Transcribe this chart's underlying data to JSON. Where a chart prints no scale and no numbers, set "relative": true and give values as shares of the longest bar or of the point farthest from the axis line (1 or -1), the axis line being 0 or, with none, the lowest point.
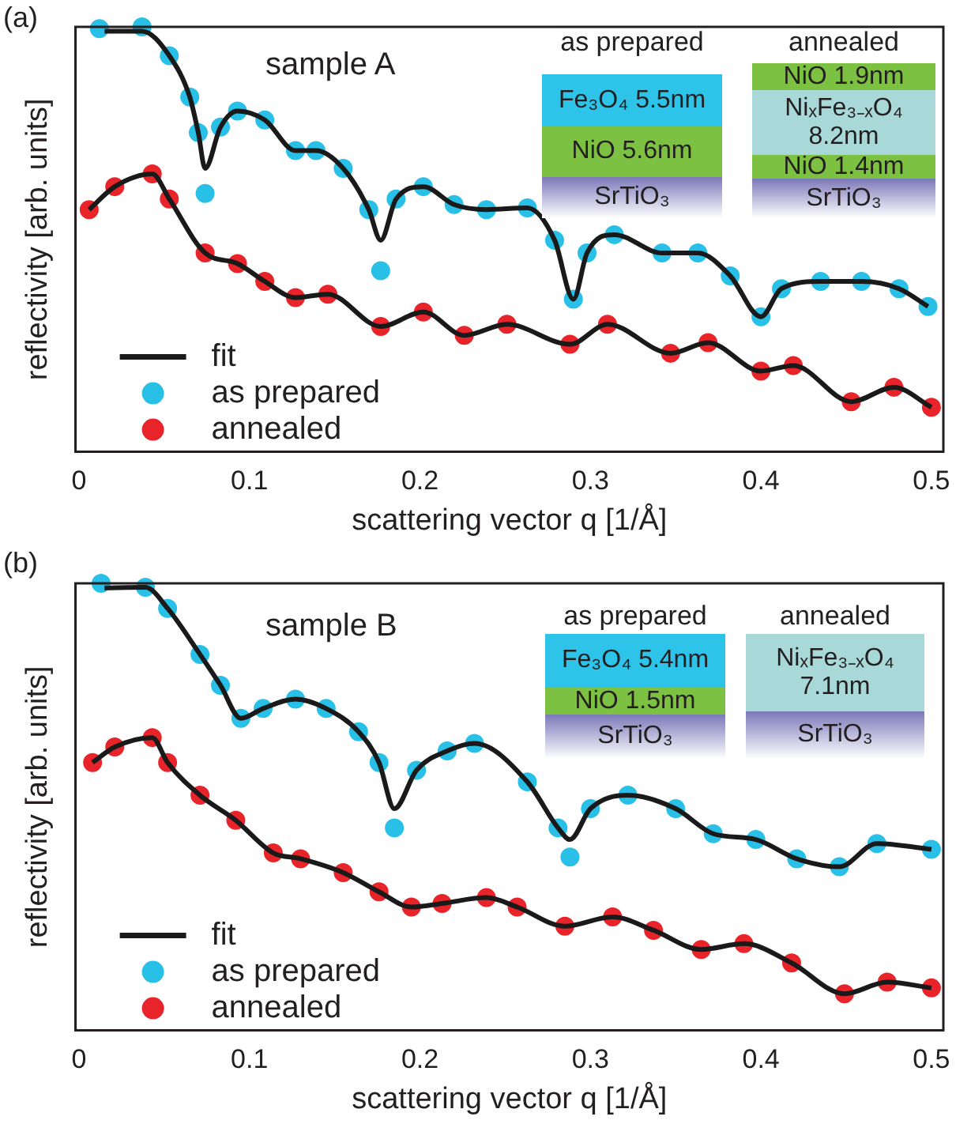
{
  "chart_data": [
    {
      "type": "line",
      "relative": true,
      "xlabel": "scattering vector q [1/Å]",
      "ylabel": "reflectivity [arb. units]",
      "xlim": [
        -0.002,
        0.507
      ],
      "xticks": [
        0,
        0.1,
        0.2,
        0.3,
        0.4,
        0.5
      ],
      "tick_labels": "x",
      "legend": "bottom left",
      "annotations": [
        "(a)",
        "sample A",
        "as prepared",
        "Fe₃O₄ 5.5nm",
        "NiO  5.6nm",
        "SrTiO₃",
        "annealed",
        "NiO  1.9nm",
        "NiₓFe₃₋ₓO₄ 8.2nm",
        "NiO  1.4nm",
        "SrTiO₃"
      ],
      "series": [
        {
          "name": "fit",
          "marker": "none",
          "color": "#1a1a1a",
          "x": [
            0.015,
            0.037,
            0.053,
            0.065,
            0.07,
            0.074,
            0.083,
            0.093,
            0.109,
            0.127,
            0.139,
            0.155,
            0.17,
            0.177,
            0.186,
            0.202,
            0.22,
            0.239,
            0.263,
            0.279,
            0.29,
            0.298,
            0.314,
            0.342,
            0.363,
            0.382,
            0.4,
            0.412,
            0.435,
            0.459,
            0.481,
            0.498
          ],
          "values": [
            0.99,
            0.99,
            0.932,
            0.835,
            0.751,
            0.667,
            0.764,
            0.802,
            0.781,
            0.709,
            0.709,
            0.667,
            0.57,
            0.498,
            0.595,
            0.624,
            0.582,
            0.57,
            0.574,
            0.498,
            0.359,
            0.468,
            0.511,
            0.468,
            0.468,
            0.414,
            0.318,
            0.384,
            0.401,
            0.401,
            0.384,
            0.342
          ]
        },
        {
          "marker": "none",
          "color": "#1a1a1a",
          "x": [
            0.006,
            0.021,
            0.043,
            0.053,
            0.074,
            0.093,
            0.109,
            0.127,
            0.146,
            0.177,
            0.202,
            0.226,
            0.251,
            0.288,
            0.31,
            0.347,
            0.369,
            0.4,
            0.419,
            0.453,
            0.478,
            0.5
          ],
          "values": [
            0.57,
            0.624,
            0.654,
            0.595,
            0.468,
            0.443,
            0.401,
            0.363,
            0.371,
            0.295,
            0.329,
            0.274,
            0.3,
            0.253,
            0.3,
            0.232,
            0.257,
            0.19,
            0.203,
            0.118,
            0.152,
            0.105
          ]
        },
        {
          "name": "as prepared",
          "type": "scatter",
          "marker": "circle",
          "color": "#29c0e8",
          "x": [
            0.012,
            0.037,
            0.053,
            0.065,
            0.07,
            0.074,
            0.083,
            0.093,
            0.109,
            0.127,
            0.139,
            0.155,
            0.17,
            0.177,
            0.186,
            0.202,
            0.22,
            0.239,
            0.263,
            0.279,
            0.29,
            0.298,
            0.314,
            0.342,
            0.363,
            0.382,
            0.4,
            0.412,
            0.435,
            0.459,
            0.481,
            0.498
          ],
          "values": [
            0.996,
            1.0,
            0.932,
            0.835,
            0.751,
            0.608,
            0.764,
            0.802,
            0.781,
            0.709,
            0.709,
            0.667,
            0.57,
            0.426,
            0.595,
            0.624,
            0.582,
            0.57,
            0.574,
            0.498,
            0.359,
            0.468,
            0.511,
            0.468,
            0.468,
            0.414,
            0.318,
            0.384,
            0.401,
            0.401,
            0.384,
            0.342
          ]
        },
        {
          "name": "annealed",
          "type": "scatter",
          "marker": "circle",
          "color": "#e8242a",
          "x": [
            0.006,
            0.021,
            0.043,
            0.053,
            0.074,
            0.093,
            0.109,
            0.127,
            0.146,
            0.177,
            0.202,
            0.226,
            0.251,
            0.288,
            0.31,
            0.347,
            0.369,
            0.4,
            0.419,
            0.453,
            0.478,
            0.5
          ],
          "values": [
            0.57,
            0.624,
            0.654,
            0.595,
            0.468,
            0.443,
            0.401,
            0.363,
            0.371,
            0.295,
            0.329,
            0.274,
            0.3,
            0.253,
            0.3,
            0.232,
            0.257,
            0.19,
            0.203,
            0.118,
            0.152,
            0.105
          ]
        }
      ]
    },
    {
      "type": "line",
      "relative": true,
      "xlabel": "scattering vector q [1/Å]",
      "ylabel": "reflectivity [arb. units]",
      "xlim": [
        -0.002,
        0.507
      ],
      "xticks": [
        0,
        0.1,
        0.2,
        0.3,
        0.4,
        0.5
      ],
      "tick_labels": "x",
      "legend": "bottom left",
      "annotations": [
        "(b)",
        "sample B",
        "as prepared",
        "Fe₃O₄ 5.4nm",
        "NiO  1.5nm",
        "SrTiO₃",
        "annealed",
        "NiₓFe₃₋ₓO₄ 7.1nm",
        "SrTiO₃"
      ],
      "series": [
        {
          "name": "fit",
          "marker": "none",
          "color": "#1a1a1a",
          "x": [
            0.015,
            0.039,
            0.052,
            0.071,
            0.083,
            0.095,
            0.108,
            0.127,
            0.145,
            0.164,
            0.176,
            0.185,
            0.198,
            0.216,
            0.232,
            0.263,
            0.281,
            0.288,
            0.3,
            0.322,
            0.35,
            0.372,
            0.397,
            0.421,
            0.446,
            0.468,
            0.5
          ],
          "values": [
            0.99,
            0.991,
            0.944,
            0.841,
            0.772,
            0.698,
            0.72,
            0.741,
            0.72,
            0.668,
            0.599,
            0.496,
            0.582,
            0.625,
            0.642,
            0.556,
            0.453,
            0.427,
            0.496,
            0.526,
            0.496,
            0.44,
            0.427,
            0.384,
            0.366,
            0.418,
            0.405
          ]
        },
        {
          "marker": "none",
          "color": "#1a1a1a",
          "x": [
            0.008,
            0.021,
            0.043,
            0.052,
            0.071,
            0.092,
            0.114,
            0.13,
            0.155,
            0.176,
            0.195,
            0.213,
            0.239,
            0.257,
            0.285,
            0.313,
            0.337,
            0.365,
            0.39,
            0.418,
            0.449,
            0.474,
            0.5
          ],
          "values": [
            0.599,
            0.634,
            0.655,
            0.599,
            0.526,
            0.47,
            0.397,
            0.384,
            0.353,
            0.31,
            0.276,
            0.284,
            0.297,
            0.276,
            0.233,
            0.254,
            0.224,
            0.181,
            0.194,
            0.151,
            0.082,
            0.108,
            0.095
          ]
        },
        {
          "name": "as prepared",
          "type": "scatter",
          "marker": "circle",
          "color": "#29c0e8",
          "x": [
            0.013,
            0.039,
            0.052,
            0.071,
            0.083,
            0.095,
            0.108,
            0.127,
            0.145,
            0.164,
            0.176,
            0.185,
            0.198,
            0.216,
            0.232,
            0.263,
            0.281,
            0.288,
            0.3,
            0.322,
            0.35,
            0.372,
            0.397,
            0.421,
            0.446,
            0.468,
            0.5
          ],
          "values": [
            1.0,
            0.991,
            0.944,
            0.841,
            0.772,
            0.698,
            0.72,
            0.741,
            0.72,
            0.668,
            0.599,
            0.453,
            0.582,
            0.625,
            0.642,
            0.556,
            0.453,
            0.388,
            0.496,
            0.526,
            0.496,
            0.44,
            0.427,
            0.384,
            0.366,
            0.418,
            0.405
          ]
        },
        {
          "name": "annealed",
          "type": "scatter",
          "marker": "circle",
          "color": "#e8242a",
          "x": [
            0.008,
            0.021,
            0.043,
            0.052,
            0.071,
            0.092,
            0.114,
            0.13,
            0.155,
            0.176,
            0.195,
            0.213,
            0.239,
            0.257,
            0.285,
            0.313,
            0.337,
            0.365,
            0.39,
            0.418,
            0.449,
            0.474,
            0.5
          ],
          "values": [
            0.599,
            0.634,
            0.655,
            0.599,
            0.526,
            0.47,
            0.397,
            0.384,
            0.353,
            0.31,
            0.276,
            0.284,
            0.297,
            0.276,
            0.233,
            0.254,
            0.224,
            0.181,
            0.194,
            0.151,
            0.082,
            0.108,
            0.095
          ]
        }
      ]
    }
  ]
}
